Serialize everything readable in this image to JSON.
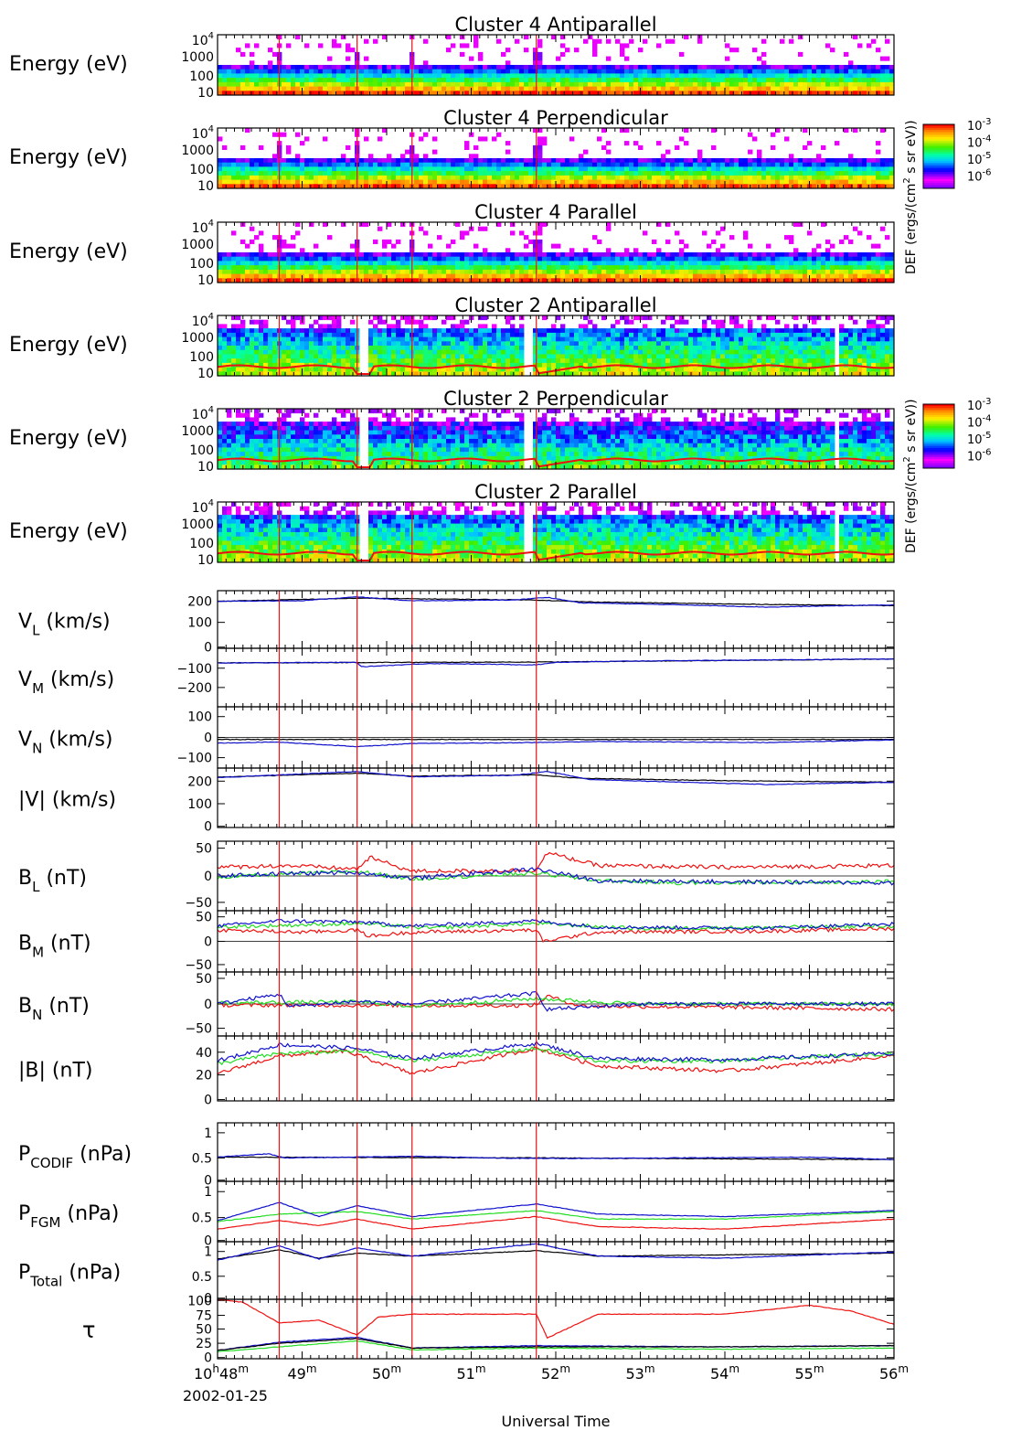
{
  "date_label": "2002-01-25",
  "xaxis_title": "Universal Time",
  "xaxis": {
    "start_minute": 48,
    "end_minute": 56,
    "labels": [
      {
        "main": "10",
        "sup1": "h",
        "mid": "48",
        "sup2": "m"
      },
      {
        "main": "49",
        "sup2": "m"
      },
      {
        "main": "50",
        "sup2": "m"
      },
      {
        "main": "51",
        "sup2": "m"
      },
      {
        "main": "52",
        "sup2": "m"
      },
      {
        "main": "53",
        "sup2": "m"
      },
      {
        "main": "54",
        "sup2": "m"
      },
      {
        "main": "55",
        "sup2": "m"
      },
      {
        "main": "56",
        "sup2": "m"
      }
    ]
  },
  "event_lines_minutes": [
    48.73,
    49.65,
    50.3,
    51.77
  ],
  "colors": {
    "red": "#ee1111",
    "green": "#22dd22",
    "blue": "#1111cc",
    "black": "#000000"
  },
  "colorbar": {
    "title_parts": [
      "DEF (ergs/(cm",
      "2",
      " s sr eV))"
    ],
    "ticks": [
      {
        "base": "10",
        "exp": "-3"
      },
      {
        "base": "10",
        "exp": "-4"
      },
      {
        "base": "10",
        "exp": "-5"
      },
      {
        "base": "10",
        "exp": "-6"
      }
    ]
  },
  "energy_ticks": [
    {
      "text": "10",
      "exp": "4"
    },
    {
      "text": "1000"
    },
    {
      "text": "100"
    },
    {
      "text": "10"
    }
  ],
  "spectrograms": [
    {
      "title": "Cluster 4 Antiparallel",
      "ylabel": "Energy (eV)",
      "sc": "C4"
    },
    {
      "title": "Cluster 4 Perpendicular",
      "ylabel": "Energy (eV)",
      "sc": "C4"
    },
    {
      "title": "Cluster 4 Parallel",
      "ylabel": "Energy (eV)",
      "sc": "C4"
    },
    {
      "title": "Cluster 2 Antiparallel",
      "ylabel": "Energy (eV)",
      "sc": "C2"
    },
    {
      "title": "Cluster 2 Perpendicular",
      "ylabel": "Energy (eV)",
      "sc": "C2"
    },
    {
      "title": "Cluster 2 Parallel",
      "ylabel": "Energy (eV)",
      "sc": "C2"
    }
  ],
  "line_panels": [
    {
      "label": "V",
      "sub": "L",
      "unit": "(km/s)",
      "ticks": [
        "200",
        "100",
        "0"
      ]
    },
    {
      "label": "V",
      "sub": "M",
      "unit": "(km/s)",
      "ticks": [
        "−100",
        "−200"
      ]
    },
    {
      "label": "V",
      "sub": "N",
      "unit": "(km/s)",
      "ticks": [
        "100",
        "0",
        "−100"
      ]
    },
    {
      "label": "|V|",
      "sub": "",
      "unit": "(km/s)",
      "ticks": [
        "200",
        "100",
        "0"
      ]
    },
    {
      "label": "B",
      "sub": "L",
      "unit": "(nT)",
      "ticks": [
        "50",
        "0",
        "−50"
      ]
    },
    {
      "label": "B",
      "sub": "M",
      "unit": "(nT)",
      "ticks": [
        "50",
        "0",
        "−50"
      ]
    },
    {
      "label": "B",
      "sub": "N",
      "unit": "(nT)",
      "ticks": [
        "50",
        "0",
        "−50"
      ]
    },
    {
      "label": "|B|",
      "sub": "",
      "unit": "(nT)",
      "ticks": [
        "40",
        "20",
        "0"
      ]
    },
    {
      "label": "P",
      "sub": "CODIF",
      "unit": "(nPa)",
      "ticks": [
        "1",
        "0.5",
        "0"
      ]
    },
    {
      "label": "P",
      "sub": "FGM",
      "unit": "(nPa)",
      "ticks": [
        "1",
        "0.5",
        "0"
      ]
    },
    {
      "label": "P",
      "sub": "Total",
      "unit": "(nPa)",
      "ticks": [
        "1",
        "0.5",
        "0"
      ]
    },
    {
      "label": "τ",
      "sub": "",
      "unit": "",
      "ticks": [
        "100",
        "75",
        "50",
        "25",
        "0"
      ]
    }
  ],
  "chart_data": {
    "type": "line",
    "x_unit": "minutes after 10h",
    "event_times_minutes": [
      48.73,
      49.65,
      50.3,
      51.77
    ],
    "panels": [
      {
        "panel": "V_L",
        "ylim": [
          0,
          260
        ],
        "series": [
          {
            "color": "black",
            "x": [
              48,
              49.65,
              51.77,
              52.3,
              54,
              56
            ],
            "y": [
              212,
              226,
              218,
              210,
              200,
              192
            ]
          },
          {
            "color": "blue",
            "x": [
              48,
              49,
              49.65,
              50.3,
              51.5,
              51.9,
              52.3,
              53.5,
              54.5,
              56
            ],
            "y": [
              212,
              215,
              232,
              214,
              218,
              230,
              205,
              196,
              186,
              196
            ]
          }
        ]
      },
      {
        "panel": "V_M",
        "ylim": [
          -300,
          0
        ],
        "series": [
          {
            "color": "black",
            "x": [
              48,
              52,
              56
            ],
            "y": [
              -75,
              -70,
              -55
            ]
          },
          {
            "color": "blue",
            "x": [
              48,
              49.65,
              49.7,
              50.5,
              51.77,
              52,
              53,
              55,
              56
            ],
            "y": [
              -75,
              -72,
              -95,
              -78,
              -85,
              -72,
              -65,
              -58,
              -55
            ]
          }
        ]
      },
      {
        "panel": "V_N",
        "ylim": [
          -150,
          150
        ],
        "series": [
          {
            "color": "black",
            "x": [
              48,
              56
            ],
            "y": [
              -10,
              -10
            ]
          },
          {
            "color": "blue",
            "x": [
              48,
              48.7,
              49.65,
              50.3,
              51.77,
              52.5,
              54.5,
              56
            ],
            "y": [
              -28,
              -22,
              -45,
              -30,
              -25,
              -20,
              -25,
              -12
            ]
          }
        ]
      },
      {
        "panel": "|V|",
        "ylim": [
          0,
          260
        ],
        "series": [
          {
            "color": "black",
            "x": [
              48,
              49.65,
              50.3,
              51.77,
              52.3,
              54,
              56
            ],
            "y": [
              220,
              238,
              225,
              230,
              215,
              205,
              198
            ]
          },
          {
            "color": "blue",
            "x": [
              48,
              49.65,
              50.3,
              51.5,
              51.9,
              52.4,
              54.5,
              56
            ],
            "y": [
              218,
              245,
              222,
              228,
              245,
              210,
              188,
              198
            ]
          }
        ]
      },
      {
        "panel": "B_L",
        "ylim": [
          -60,
          60
        ],
        "series": [
          {
            "color": "red",
            "x": [
              48,
              48.8,
              49.65,
              49.8,
              50.3,
              51.77,
              51.9,
              52.5,
              54,
              56
            ],
            "y": [
              15,
              18,
              12,
              32,
              8,
              10,
              40,
              18,
              15,
              18
            ]
          },
          {
            "color": "green",
            "x": [
              48,
              49.65,
              50.3,
              51.77,
              52.5,
              53.5,
              56
            ],
            "y": [
              -2,
              8,
              -5,
              5,
              -8,
              -12,
              -10
            ]
          },
          {
            "color": "blue",
            "x": [
              48,
              48.73,
              49.65,
              50.3,
              51.77,
              52.5,
              54,
              56
            ],
            "y": [
              0,
              4,
              6,
              -4,
              12,
              -8,
              -10,
              -12
            ]
          }
        ]
      },
      {
        "panel": "B_M",
        "ylim": [
          -60,
          60
        ],
        "series": [
          {
            "color": "red",
            "x": [
              48,
              49,
              49.65,
              49.8,
              50.3,
              51.77,
              51.85,
              52.5,
              54.5,
              56
            ],
            "y": [
              22,
              18,
              22,
              10,
              18,
              22,
              0,
              18,
              20,
              25
            ]
          },
          {
            "color": "green",
            "x": [
              48,
              49.65,
              50.5,
              51.77,
              53,
              56
            ],
            "y": [
              28,
              35,
              26,
              35,
              25,
              30
            ]
          },
          {
            "color": "blue",
            "x": [
              48,
              48.73,
              49.65,
              50.3,
              51.77,
              52.5,
              54.5,
              56
            ],
            "y": [
              30,
              40,
              38,
              30,
              40,
              28,
              26,
              34
            ]
          }
        ]
      },
      {
        "panel": "B_N",
        "ylim": [
          -60,
          60
        ],
        "series": [
          {
            "color": "red",
            "x": [
              48,
              51.5,
              51.77,
              51.9,
              52.3,
              54,
              56
            ],
            "y": [
              -2,
              -3,
              -2,
              15,
              -4,
              -6,
              -10
            ]
          },
          {
            "color": "green",
            "x": [
              48,
              49.65,
              50.3,
              51.77,
              53,
              56
            ],
            "y": [
              2,
              4,
              -4,
              10,
              0,
              0
            ]
          },
          {
            "color": "blue",
            "x": [
              48,
              48.73,
              48.85,
              49.65,
              50.3,
              51.77,
              51.9,
              53,
              56
            ],
            "y": [
              0,
              18,
              -5,
              5,
              0,
              20,
              -10,
              0,
              0
            ]
          }
        ]
      },
      {
        "panel": "|B|",
        "ylim": [
          0,
          52
        ],
        "series": [
          {
            "color": "red",
            "x": [
              48,
              48.73,
              49.5,
              50.3,
              51.77,
              52.5,
              54,
              56
            ],
            "y": [
              22,
              36,
              40,
              22,
              42,
              28,
              24,
              36
            ]
          },
          {
            "color": "green",
            "x": [
              48,
              48.73,
              49.65,
              50.3,
              51.77,
              52.5,
              54,
              56
            ],
            "y": [
              30,
              38,
              40,
              32,
              42,
              32,
              32,
              38
            ]
          },
          {
            "color": "blue",
            "x": [
              48,
              48.73,
              49.65,
              50.3,
              51.77,
              52.5,
              54,
              56
            ],
            "y": [
              32,
              45,
              42,
              34,
              46,
              34,
              33,
              38
            ]
          }
        ]
      },
      {
        "panel": "P_CODIF",
        "ylim": [
          0,
          1.4
        ],
        "series": [
          {
            "color": "black",
            "x": [
              48,
              52,
              56
            ],
            "y": [
              0.58,
              0.56,
              0.52
            ]
          },
          {
            "color": "blue",
            "x": [
              48,
              48.6,
              48.8,
              50.3,
              51.5,
              52.5,
              55,
              56
            ],
            "y": [
              0.58,
              0.66,
              0.56,
              0.6,
              0.55,
              0.55,
              0.58,
              0.52
            ]
          }
        ]
      },
      {
        "panel": "P_FGM",
        "ylim": [
          0,
          1.2
        ],
        "series": [
          {
            "color": "red",
            "x": [
              48,
              48.73,
              49.2,
              49.65,
              50.3,
              51.77,
              52.5,
              54,
              56
            ],
            "y": [
              0.25,
              0.42,
              0.32,
              0.45,
              0.25,
              0.5,
              0.3,
              0.25,
              0.45
            ]
          },
          {
            "color": "green",
            "x": [
              48,
              48.73,
              49.65,
              50.3,
              51.77,
              52.5,
              54,
              56
            ],
            "y": [
              0.4,
              0.55,
              0.6,
              0.45,
              0.62,
              0.45,
              0.45,
              0.6
            ]
          },
          {
            "color": "blue",
            "x": [
              48,
              48.73,
              49.2,
              49.65,
              50.3,
              51.77,
              52.5,
              54,
              56
            ],
            "y": [
              0.42,
              0.78,
              0.5,
              0.72,
              0.5,
              0.75,
              0.55,
              0.5,
              0.62
            ]
          }
        ]
      },
      {
        "panel": "P_Total",
        "ylim": [
          0,
          1.4
        ],
        "series": [
          {
            "color": "black",
            "x": [
              48,
              48.73,
              49.2,
              49.65,
              50.3,
              51.77,
              52.5,
              56
            ],
            "y": [
              0.98,
              1.2,
              1.0,
              1.12,
              1.05,
              1.18,
              1.05,
              1.12
            ]
          },
          {
            "color": "blue",
            "x": [
              48,
              48.73,
              49.2,
              49.65,
              50.3,
              51.77,
              52.5,
              54,
              56
            ],
            "y": [
              0.95,
              1.3,
              0.98,
              1.25,
              1.05,
              1.35,
              1.05,
              1.0,
              1.15
            ]
          }
        ]
      },
      {
        "panel": "tau",
        "ylim": [
          0,
          100
        ],
        "series": [
          {
            "color": "red",
            "x": [
              48,
              48.3,
              48.73,
              49.2,
              49.65,
              49.9,
              50.3,
              51.77,
              51.9,
              52.5,
              54,
              55,
              55.5,
              56
            ],
            "y": [
              100,
              95,
              60,
              65,
              40,
              70,
              75,
              75,
              35,
              75,
              75,
              90,
              80,
              58
            ]
          },
          {
            "color": "green",
            "x": [
              48,
              49.65,
              50.3,
              51.77,
              54,
              56
            ],
            "y": [
              12,
              30,
              15,
              18,
              16,
              18
            ]
          },
          {
            "color": "blue",
            "x": [
              48,
              48.73,
              49.65,
              50.3,
              51.77,
              54,
              56
            ],
            "y": [
              14,
              28,
              36,
              18,
              22,
              20,
              22
            ]
          },
          {
            "color": "black",
            "x": [
              48,
              48.73,
              49.65,
              50.3,
              51.77,
              54,
              56
            ],
            "y": [
              14,
              26,
              34,
              18,
              20,
              20,
              22
            ]
          }
        ]
      }
    ]
  }
}
